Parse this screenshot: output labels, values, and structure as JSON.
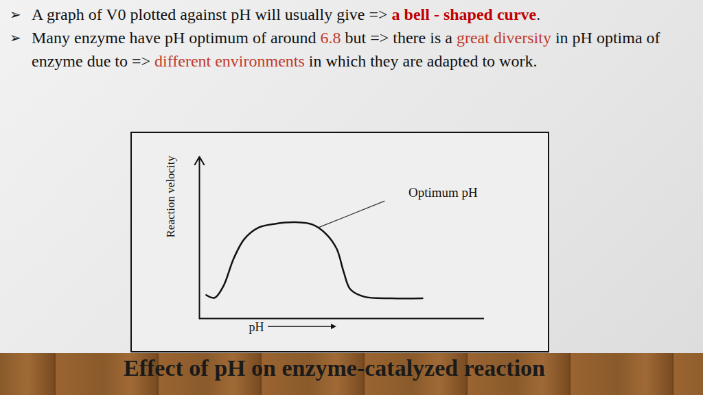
{
  "slide": {
    "bullet": "➢",
    "bullets": [
      [
        {
          "text": "A graph of V0 plotted against pH will usually give => "
        },
        {
          "text": "a bell - shaped curve",
          "color": "#c00000",
          "bold": true
        },
        {
          "text": "."
        }
      ],
      [
        {
          "text": " Many enzyme have pH optimum of around "
        },
        {
          "text": "6.8",
          "color": "#c0392b"
        },
        {
          "text": " but => there is a "
        },
        {
          "text": "great diversity",
          "color": "#c0392b"
        },
        {
          "text": " in pH optima of enzyme due to => "
        },
        {
          "text": "different environments",
          "color": "#c0392b"
        },
        {
          "text": " in which they are adapted to work."
        }
      ]
    ],
    "title": "Effect of pH on enzyme-catalyzed reaction"
  },
  "chart_data": {
    "type": "line",
    "x_label": "pH",
    "y_label": "Reaction velocity",
    "x": [
      0.24,
      0.53,
      0.84,
      1.2,
      1.57,
      2.05,
      2.65,
      3.37,
      3.98,
      4.46,
      4.82,
      5.06,
      5.3,
      5.78,
      6.75,
      7.83
    ],
    "values": [
      1.45,
      1.28,
      2.0,
      3.7,
      4.9,
      5.6,
      5.85,
      5.95,
      5.8,
      5.2,
      4.3,
      2.9,
      1.8,
      1.35,
      1.25,
      1.25
    ],
    "color": "#111111",
    "line_style": "solid",
    "xlim": [
      0,
      10
    ],
    "ylim": [
      0,
      10
    ],
    "tick_labels": false,
    "grid": false,
    "annotations": [
      {
        "text": "Optimum pH",
        "x": 8.55,
        "y": 7.8,
        "x1": 6.5,
        "y1": 7.26,
        "x2": 4.2,
        "y2": 5.64
      }
    ]
  }
}
